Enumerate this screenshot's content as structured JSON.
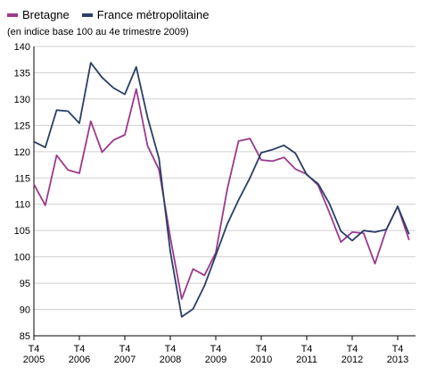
{
  "chart_data": {
    "type": "line",
    "subtitle": "(en indice base 100 au 4e trimestre 2009)",
    "x_tick_labels": [
      {
        "top": "T4",
        "bottom": "2005"
      },
      {
        "top": "T4",
        "bottom": "2006"
      },
      {
        "top": "T4",
        "bottom": "2007"
      },
      {
        "top": "T4",
        "bottom": "2008"
      },
      {
        "top": "T4",
        "bottom": "2009"
      },
      {
        "top": "T4",
        "bottom": "2010"
      },
      {
        "top": "T4",
        "bottom": "2011"
      },
      {
        "top": "T4",
        "bottom": "2012"
      },
      {
        "top": "T4",
        "bottom": "2013"
      }
    ],
    "x_quarter_index_start": 0,
    "y_ticks": [
      85,
      90,
      95,
      100,
      105,
      110,
      115,
      120,
      125,
      130,
      135,
      140
    ],
    "ylim": [
      85,
      140
    ],
    "grid": {
      "horizontal": true,
      "vertical": false
    },
    "legend_position": "top-left",
    "series": [
      {
        "name": "Bretagne",
        "color": "#9b3a8c",
        "values": [
          113.8,
          109.8,
          119.3,
          116.5,
          115.9,
          125.8,
          119.9,
          122.2,
          123.2,
          131.9,
          121.1,
          116.6,
          103.7,
          92.0,
          97.7,
          96.5,
          100.8,
          112.8,
          122.0,
          122.5,
          118.4,
          118.2,
          118.9,
          116.7,
          115.7,
          113.6,
          108.4,
          102.8,
          104.7,
          104.5,
          98.7,
          105.2,
          109.6,
          103.2
        ]
      },
      {
        "name": "France métropolitaine",
        "color": "#2a3f66",
        "values": [
          121.9,
          120.8,
          127.9,
          127.7,
          125.4,
          136.9,
          134.1,
          132.1,
          130.9,
          136.1,
          126.5,
          118.7,
          101.0,
          88.6,
          90.1,
          94.5,
          100.3,
          106.2,
          110.8,
          115.0,
          119.8,
          120.4,
          121.2,
          119.7,
          115.6,
          113.9,
          110.1,
          104.9,
          103.1,
          105.0,
          104.7,
          105.2,
          109.6,
          104.3
        ]
      }
    ]
  }
}
